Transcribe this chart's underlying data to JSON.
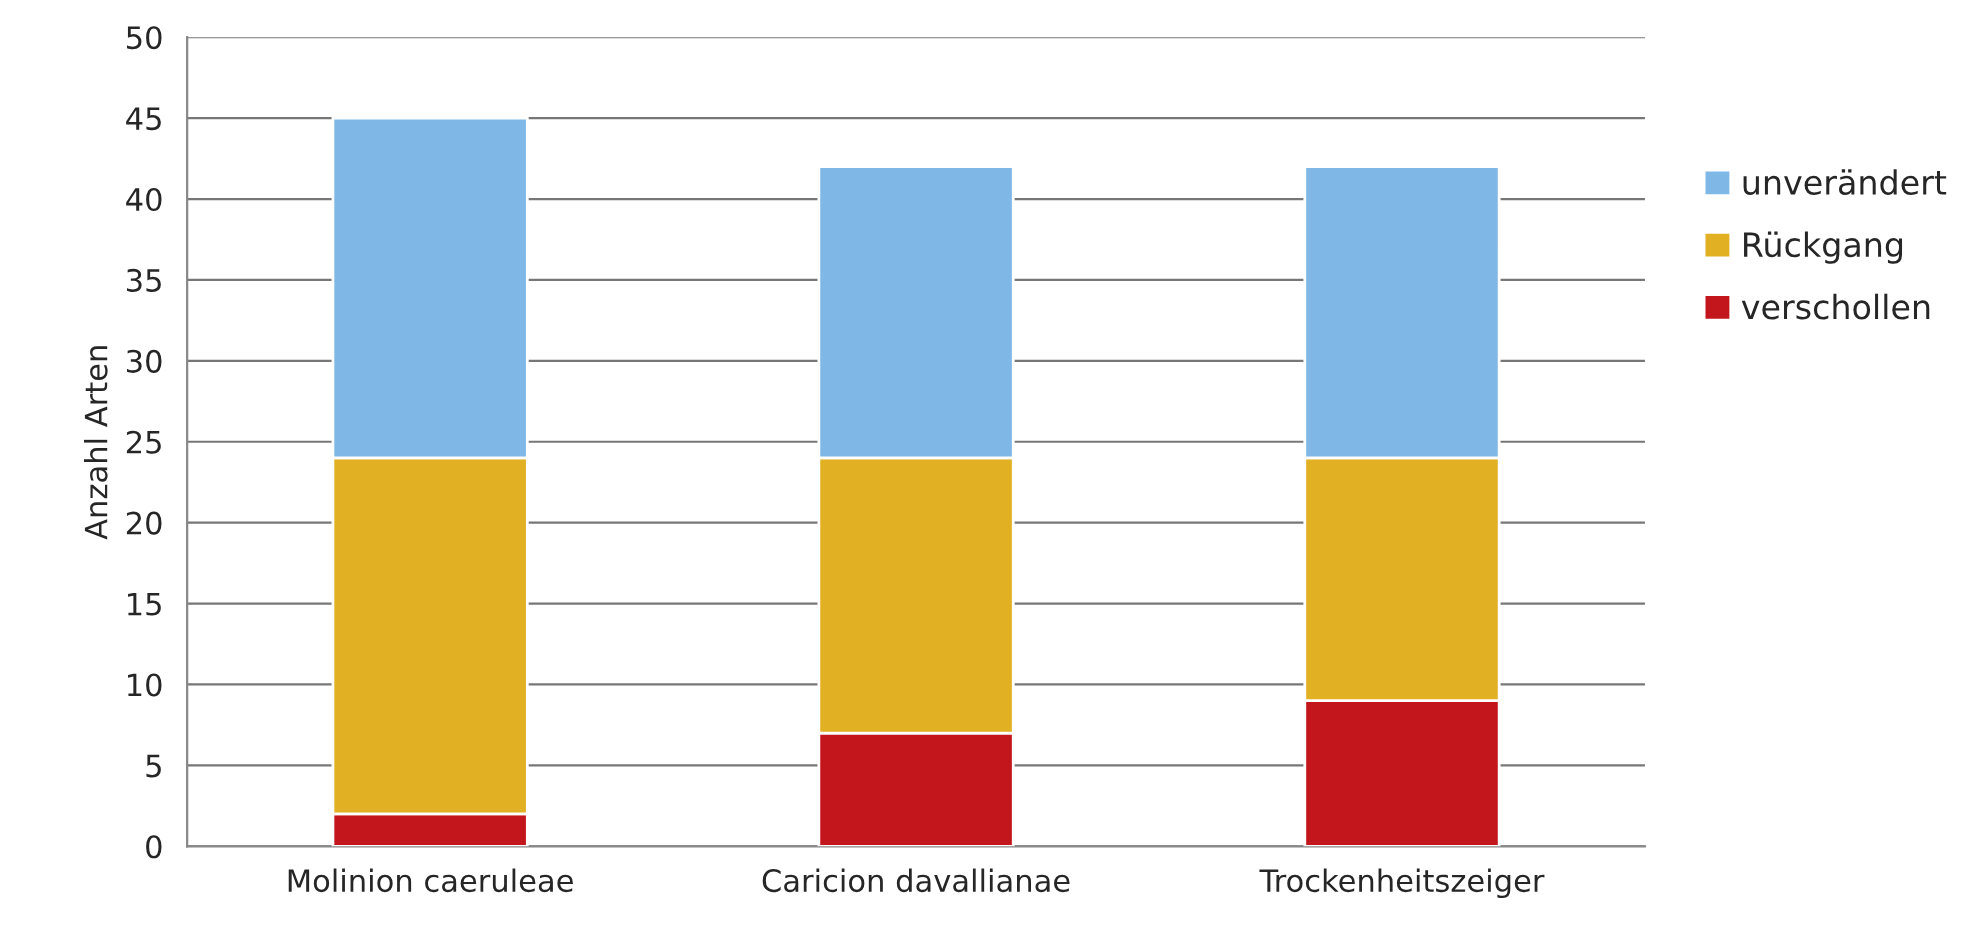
{
  "chart_data": {
    "type": "bar",
    "stacked": true,
    "ylabel": "Anzahl Arten",
    "categories": [
      "Molinion caeruleae",
      "Caricion davallianae",
      "Trockenheitszeiger"
    ],
    "series": [
      {
        "name": "verschollen",
        "color": "#c3161c",
        "values": [
          2,
          7,
          9
        ]
      },
      {
        "name": "Rückgang",
        "color": "#e2b023",
        "values": [
          22,
          17,
          15
        ]
      },
      {
        "name": "unverändert",
        "color": "#7fb8e6",
        "values": [
          21,
          18,
          18
        ]
      }
    ],
    "ylim": [
      0,
      50
    ],
    "yticks": [
      0,
      5,
      10,
      15,
      20,
      25,
      30,
      35,
      40,
      45,
      50
    ],
    "grid": "y",
    "legend": "right"
  }
}
